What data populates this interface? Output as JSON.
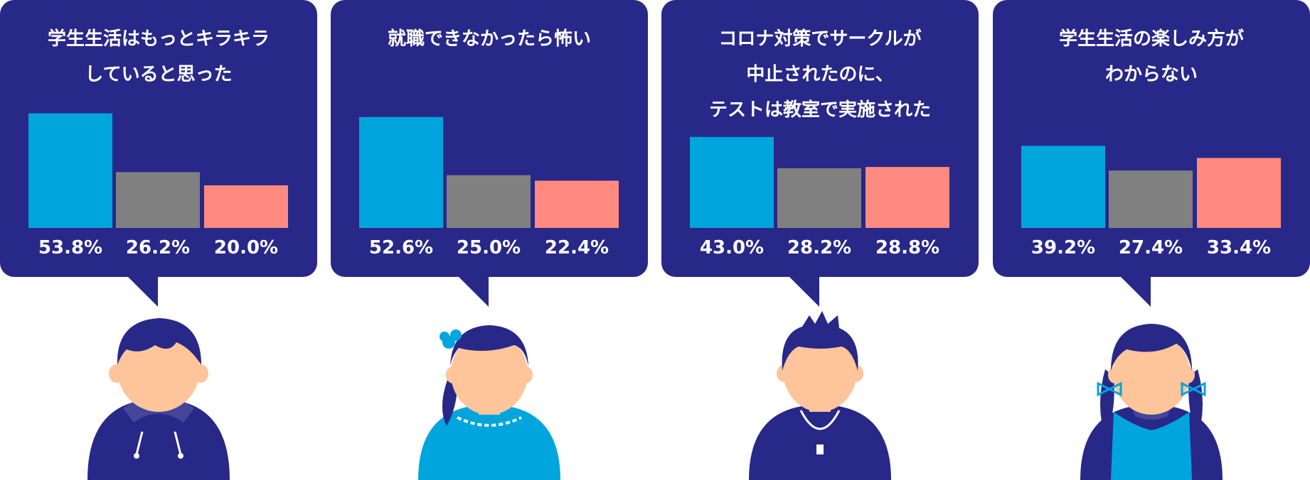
{
  "colors": {
    "panel_bg": "#282888",
    "series": [
      "#00a5dd",
      "#808080",
      "#ff8a80"
    ]
  },
  "chart_data": [
    {
      "type": "bar",
      "title_lines": [
        "学生生活はもっとキラキラ",
        "していると思った"
      ],
      "values": [
        53.8,
        26.2,
        20.0
      ],
      "labels": [
        "53.8%",
        "26.2%",
        "20.0%"
      ]
    },
    {
      "type": "bar",
      "title_lines": [
        "就職できなかったら怖い"
      ],
      "values": [
        52.6,
        25.0,
        22.4
      ],
      "labels": [
        "52.6%",
        "25.0%",
        "22.4%"
      ]
    },
    {
      "type": "bar",
      "title_lines": [
        "コロナ対策でサークルが",
        "中止されたのに、",
        "テストは教室で実施された"
      ],
      "values": [
        43.0,
        28.2,
        28.8
      ],
      "labels": [
        "43.0%",
        "28.2%",
        "28.8%"
      ]
    },
    {
      "type": "bar",
      "title_lines": [
        "学生生活の楽しみ方が",
        "わからない"
      ],
      "values": [
        39.2,
        27.4,
        33.4
      ],
      "labels": [
        "39.2%",
        "27.4%",
        "33.4%"
      ]
    }
  ],
  "illustrations": [
    "boy-hoodie",
    "girl-bun",
    "boy-necklace",
    "girl-pigtails"
  ]
}
